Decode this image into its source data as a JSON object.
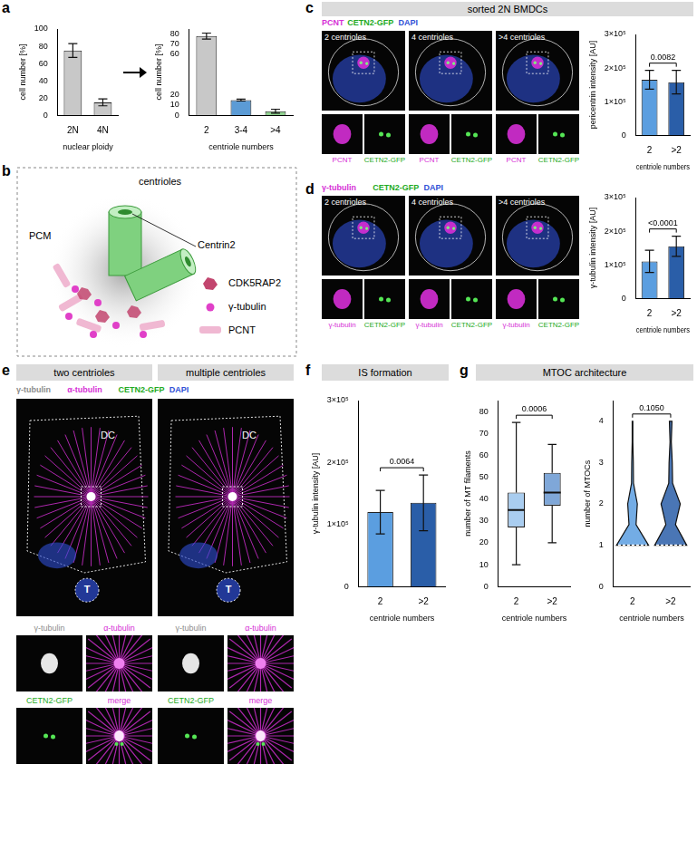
{
  "chart_data": [
    {
      "type": "bar",
      "categories": [
        "2N",
        "4N"
      ],
      "values": [
        75,
        15
      ],
      "errors": [
        8,
        4
      ],
      "color": "#c8c8c8",
      "x_label": "nuclear ploidy",
      "y_label": "cell number [%]",
      "ylim": [
        0,
        100
      ],
      "yticks": [
        0,
        20,
        40,
        60,
        80,
        100
      ],
      "grid": false
    },
    {
      "type": "bar",
      "categories": [
        "2",
        "3-4",
        ">4"
      ],
      "values": [
        78,
        15,
        4
      ],
      "errors": [
        3,
        1,
        2
      ],
      "colors": [
        "#c8c8c8",
        "#5b9bd5",
        "#8fd18f"
      ],
      "x_label": "centriole numbers",
      "y_label": "cell number [%]",
      "ylim": [
        0,
        85
      ],
      "yticks": [
        0,
        10,
        20,
        60,
        70,
        80
      ],
      "grid": false
    },
    {
      "type": "bar",
      "categories": [
        "2",
        ">2"
      ],
      "values": [
        165000,
        158000
      ],
      "errors": [
        28000,
        35000
      ],
      "colors": [
        "#5b9ee0",
        "#2a5ea8"
      ],
      "x_label": "centriole numbers",
      "y_label": "pericentrin intensity [AU]",
      "ylim": [
        0,
        300000
      ],
      "yticks": [
        0,
        {
          "value": 100000,
          "label": "1×10⁵"
        },
        {
          "value": 200000,
          "label": "2×10⁵"
        },
        {
          "value": 300000,
          "label": "3×10⁵"
        }
      ],
      "annotation": "0.0082",
      "grid": false
    },
    {
      "type": "bar",
      "categories": [
        "2",
        ">2"
      ],
      "values": [
        110000,
        155000
      ],
      "errors": [
        33000,
        30000
      ],
      "colors": [
        "#5b9ee0",
        "#2a5ea8"
      ],
      "x_label": "centriole numbers",
      "y_label": "γ-tubulin intensity [AU]",
      "ylim": [
        0,
        300000
      ],
      "yticks": [
        0,
        {
          "value": 100000,
          "label": "1×10⁵"
        },
        {
          "value": 200000,
          "label": "2×10⁵"
        },
        {
          "value": 300000,
          "label": "3×10⁵"
        }
      ],
      "annotation": "<0.0001",
      "grid": false
    },
    {
      "type": "bar",
      "categories": [
        "2",
        ">2"
      ],
      "values": [
        120000,
        135000
      ],
      "errors": [
        35000,
        45000
      ],
      "colors": [
        "#5b9ee0",
        "#2a5ea8"
      ],
      "x_label": "centriole numbers",
      "y_label": "γ-tubulin intensity [AU]",
      "ylim": [
        0,
        300000
      ],
      "yticks": [
        0,
        {
          "value": 100000,
          "label": "1×10⁵"
        },
        {
          "value": 200000,
          "label": "2×10⁵"
        },
        {
          "value": 300000,
          "label": "3×10⁵"
        }
      ],
      "annotation": "0.0064",
      "grid": false
    },
    {
      "type": "box",
      "categories": [
        "2",
        ">2"
      ],
      "boxes": [
        {
          "min": 10,
          "q1": 27,
          "median": 35,
          "q3": 43,
          "max": 75
        },
        {
          "min": 20,
          "q1": 37,
          "median": 43,
          "q3": 52,
          "max": 65
        }
      ],
      "colors": [
        "#a9cdf0",
        "#7fa7d8"
      ],
      "x_label": "centriole numbers",
      "y_label": "number of MT filaments",
      "ylim": [
        0,
        85
      ],
      "yticks": [
        0,
        10,
        20,
        30,
        40,
        50,
        60,
        70,
        80
      ],
      "annotation": "0.0006",
      "grid": false
    },
    {
      "type": "violin",
      "categories": [
        "2",
        ">2"
      ],
      "levels": [
        1,
        1.5,
        2,
        2.5,
        3,
        3.5,
        4
      ],
      "density": [
        [
          1,
          0.22,
          0.3,
          0.06,
          0.05,
          0.02,
          0.02
        ],
        [
          1,
          0.3,
          0.6,
          0.12,
          0.1,
          0.04,
          0.08
        ]
      ],
      "medians": [
        1,
        1
      ],
      "colors": [
        "#5b9ee0",
        "#2a5ea8"
      ],
      "x_label": "centriole numbers",
      "y_label": "number of MTOCs",
      "ylim": [
        0,
        4.5
      ],
      "yticks": [
        0,
        1,
        2,
        3,
        4
      ],
      "annotation": "0.1050",
      "grid": false
    }
  ],
  "figure": {
    "a": {
      "letter": "a"
    },
    "b": {
      "letter": "b",
      "centrioles": "centrioles",
      "pcm": "PCM",
      "centrin": "Centrin2",
      "legend": [
        {
          "text": "CDK5RAP2",
          "color": "#c2456e"
        },
        {
          "text": "γ-tubulin",
          "color": "#e040c8"
        },
        {
          "text": "PCNT",
          "color": "#f0b8d2"
        }
      ]
    },
    "c": {
      "letter": "c",
      "header": "sorted 2N BMDCs",
      "channels": [
        {
          "text": "PCNT",
          "color": "#d62fd6"
        },
        {
          "text": "CETN2-GFP",
          "color": "#22aa22"
        },
        {
          "text": "DAPI",
          "color": "#2f4fd6"
        }
      ],
      "images": [
        "2 centrioles",
        "4 centrioles",
        ">4 centrioles"
      ],
      "insets": [
        {
          "text": "PCNT",
          "color": "#d62fd6"
        },
        {
          "text": "CETN2-GFP",
          "color": "#22aa22"
        }
      ]
    },
    "d": {
      "letter": "d",
      "channels": [
        {
          "text": "γ-tubulin",
          "color": "#d62fd6"
        },
        {
          "text": "CETN2-GFP",
          "color": "#22aa22"
        },
        {
          "text": "DAPI",
          "color": "#2f4fd6"
        }
      ],
      "images": [
        "2 centrioles",
        "4 centrioles",
        ">4 centrioles"
      ],
      "insets": [
        {
          "text": "γ-tubulin",
          "color": "#d62fd6"
        },
        {
          "text": "CETN2-GFP",
          "color": "#22aa22"
        }
      ]
    },
    "e": {
      "letter": "e",
      "headers": [
        "two centrioles",
        "multiple centrioles"
      ],
      "channels": [
        {
          "text": "γ-tubulin",
          "color": "#8c8c8c"
        },
        {
          "text": "α-tubulin",
          "color": "#d62fd6"
        },
        {
          "text": "CETN2-GFP",
          "color": "#22aa22"
        },
        {
          "text": "DAPI",
          "color": "#2f4fd6"
        }
      ],
      "cell_label": "DC",
      "target_label": "T",
      "insets": [
        {
          "text": "γ-tubulin",
          "color": "#8c8c8c"
        },
        {
          "text": "α-tubulin",
          "color": "#d62fd6"
        },
        {
          "text": "CETN2-GFP",
          "color": "#22aa22"
        },
        {
          "text": "merge",
          "color": "#d62fd6"
        }
      ]
    },
    "f": {
      "letter": "f",
      "header": "IS formation"
    },
    "g": {
      "letter": "g",
      "header": "MTOC architecture"
    }
  }
}
